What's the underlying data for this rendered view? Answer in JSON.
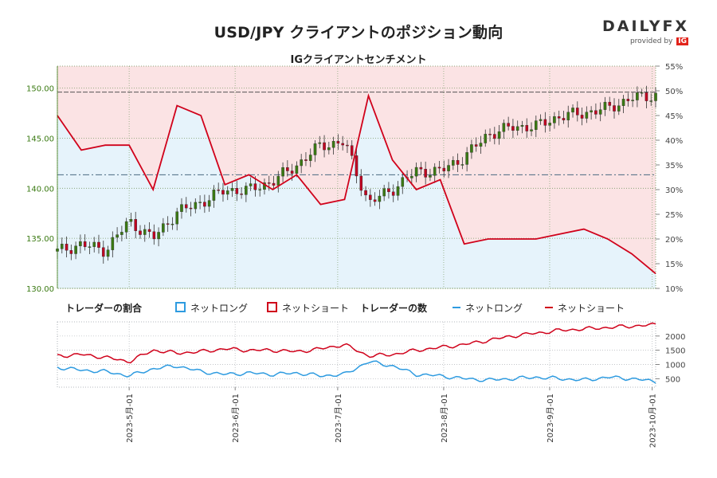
{
  "header": {
    "title": "USD/JPY クライアントのポジション動向",
    "subtitle": "IGクライアントセンチメント"
  },
  "logo": {
    "brand_left": "DAILY",
    "brand_right": "FX",
    "provided_by": "provided by",
    "provider": "IG"
  },
  "colors": {
    "net_long": "#2e9be0",
    "net_short": "#d0021b",
    "long_fill": "#e6f3fb",
    "short_fill": "#fbe3e4",
    "price_axis": "#3a7a12",
    "candle_up": "#3a7a12",
    "candle_down": "#c00020"
  },
  "legend": {
    "ratio_title": "トレーダーの割合",
    "ratio_long": "ネットロング",
    "ratio_short": "ネットショート",
    "count_title": "トレーダーの数",
    "count_long": "ネットロング",
    "count_short": "ネットショート"
  },
  "chart_data": [
    {
      "type": "line",
      "description_panel": "price_and_ratio",
      "x_dates": [
        "2023-04-10",
        "2023-04-17",
        "2023-04-24",
        "2023-05-01",
        "2023-05-08",
        "2023-05-15",
        "2023-05-22",
        "2023-05-29",
        "2023-06-05",
        "2023-06-12",
        "2023-06-19",
        "2023-06-26",
        "2023-07-03",
        "2023-07-10",
        "2023-07-17",
        "2023-07-24",
        "2023-07-31",
        "2023-08-07",
        "2023-08-14",
        "2023-08-21",
        "2023-08-28",
        "2023-09-04",
        "2023-09-11",
        "2023-09-18",
        "2023-09-25",
        "2023-10-02"
      ],
      "price_close": [
        133.7,
        134.4,
        133.8,
        136.7,
        135.0,
        137.6,
        138.6,
        139.8,
        139.8,
        140.7,
        142.3,
        144.3,
        144.6,
        138.5,
        139.9,
        141.7,
        141.7,
        143.1,
        145.4,
        146.1,
        146.2,
        147.2,
        147.5,
        148.0,
        149.0,
        149.3
      ],
      "net_short_pct": [
        45,
        38,
        39,
        39,
        30,
        47,
        45,
        31,
        33,
        30,
        33,
        27,
        28,
        49,
        36,
        30,
        32,
        19,
        20,
        20,
        20,
        21,
        22,
        20,
        17,
        13
      ],
      "y_price_ticks": [
        "130.00",
        "135.00",
        "140.00",
        "145.00",
        "150.00"
      ],
      "y_pct_ticks": [
        "10%",
        "15%",
        "20%",
        "25%",
        "30%",
        "35%",
        "40%",
        "45%",
        "50%",
        "55%"
      ],
      "ylim_price": [
        130,
        152.2
      ],
      "ylim_pct": [
        10,
        55
      ],
      "reference_lines": [
        {
          "axis": "price",
          "value": 149.6
        },
        {
          "axis": "pct",
          "value": 33
        }
      ]
    },
    {
      "type": "line",
      "description_panel": "trader_counts",
      "x_dates": [
        "2023-04-10",
        "2023-04-17",
        "2023-04-24",
        "2023-05-01",
        "2023-05-08",
        "2023-05-15",
        "2023-05-22",
        "2023-05-29",
        "2023-06-05",
        "2023-06-12",
        "2023-06-19",
        "2023-06-26",
        "2023-07-03",
        "2023-07-10",
        "2023-07-17",
        "2023-07-24",
        "2023-07-31",
        "2023-08-07",
        "2023-08-14",
        "2023-08-21",
        "2023-08-28",
        "2023-09-04",
        "2023-09-11",
        "2023-09-18",
        "2023-09-25",
        "2023-10-02"
      ],
      "series": [
        {
          "name": "ネットロング",
          "values": [
            900,
            800,
            750,
            600,
            850,
            950,
            750,
            650,
            700,
            650,
            700,
            600,
            650,
            1100,
            950,
            650,
            600,
            500,
            450,
            500,
            550,
            500,
            450,
            550,
            500,
            400
          ]
        },
        {
          "name": "ネットショート",
          "values": [
            1300,
            1350,
            1250,
            1100,
            1500,
            1400,
            1450,
            1550,
            1500,
            1500,
            1450,
            1550,
            1700,
            1300,
            1350,
            1500,
            1600,
            1700,
            1850,
            2000,
            2100,
            2200,
            2250,
            2300,
            2350,
            2400
          ]
        }
      ],
      "y_ticks": [
        "500",
        "1000",
        "1500",
        "2000"
      ],
      "ylim": [
        200,
        2500
      ],
      "x_tick_labels": [
        "2023-5月-01",
        "2023-6月-01",
        "2023-7月-01",
        "2023-8月-01",
        "2023-9月-01",
        "2023-10月-01"
      ],
      "x_tick_dates": [
        "2023-05-01",
        "2023-06-01",
        "2023-07-01",
        "2023-08-01",
        "2023-09-01",
        "2023-10-01"
      ]
    }
  ]
}
